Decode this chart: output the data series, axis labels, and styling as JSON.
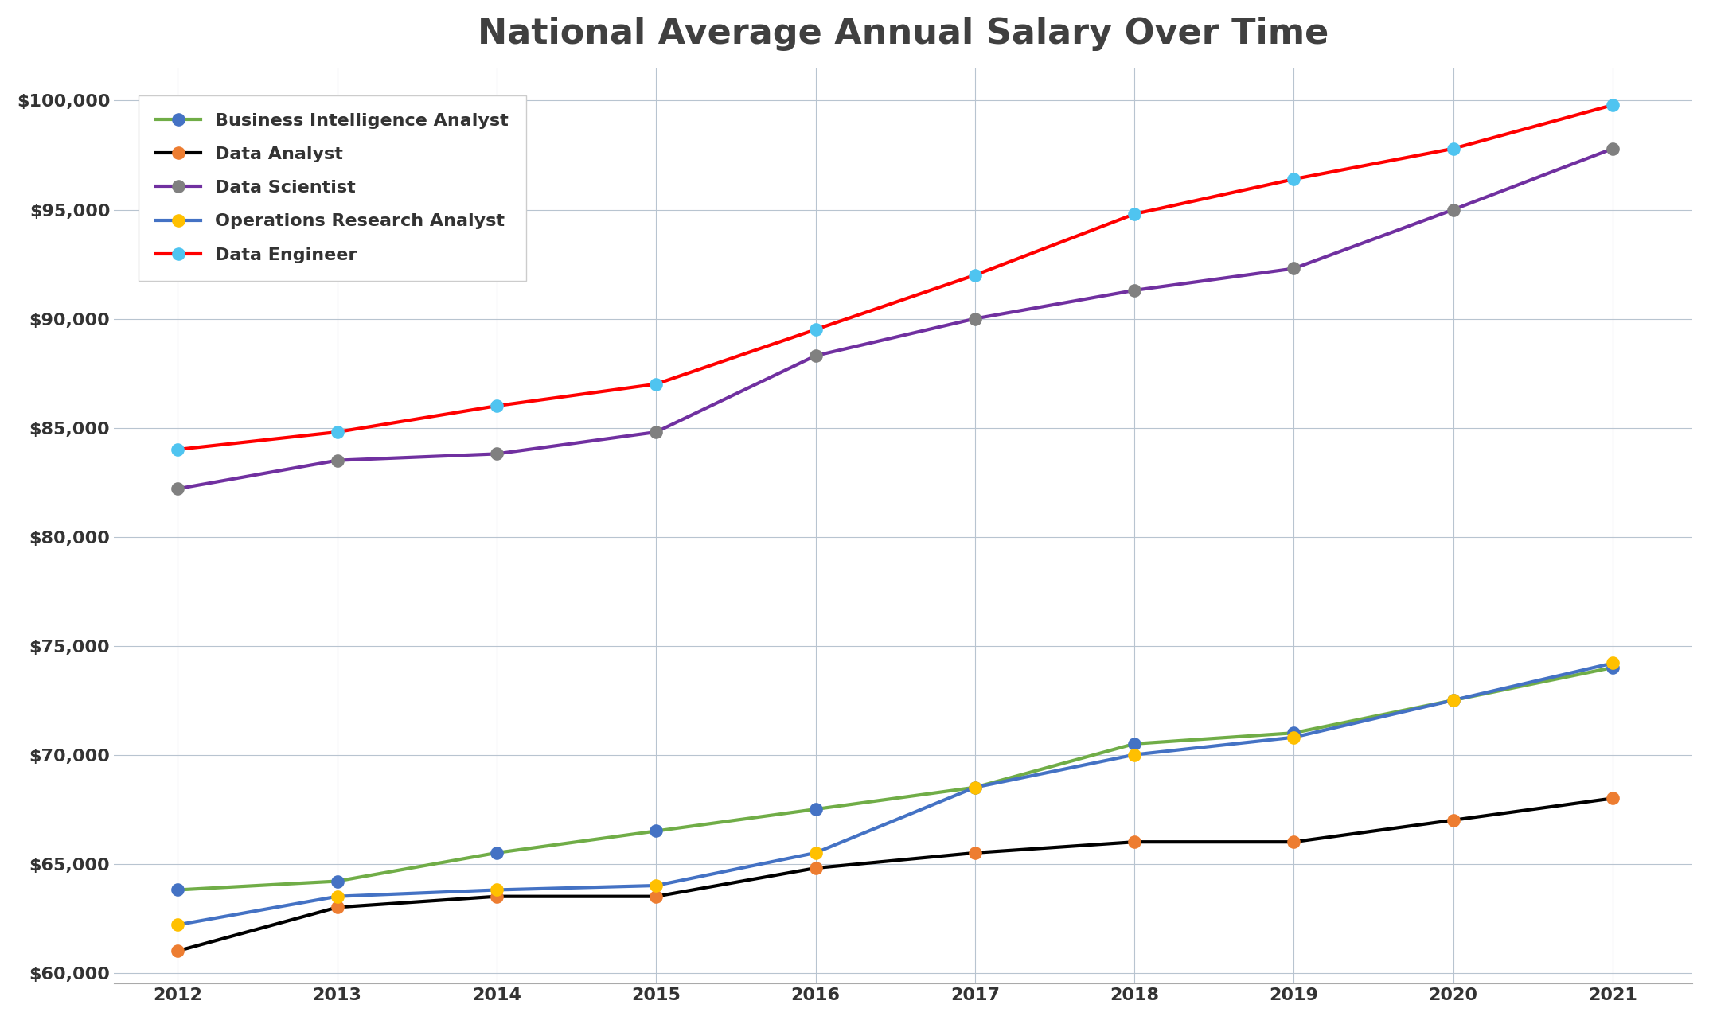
{
  "title": "National Average Annual Salary Over Time",
  "years": [
    2012,
    2013,
    2014,
    2015,
    2016,
    2017,
    2018,
    2019,
    2020,
    2021
  ],
  "series": [
    {
      "label": "Business Intelligence Analyst",
      "line_color": "#70AD47",
      "marker_facecolor": "#4472C4",
      "marker_edgecolor": "#4472C4",
      "values": [
        63800,
        64200,
        65500,
        66500,
        67500,
        68500,
        70500,
        71000,
        72500,
        74000
      ]
    },
    {
      "label": "Data Analyst",
      "line_color": "#000000",
      "marker_facecolor": "#ED7D31",
      "marker_edgecolor": "#ED7D31",
      "values": [
        61000,
        63000,
        63500,
        63500,
        64800,
        65500,
        66000,
        66000,
        67000,
        68000
      ]
    },
    {
      "label": "Data Scientist",
      "line_color": "#7030A0",
      "marker_facecolor": "#808080",
      "marker_edgecolor": "#808080",
      "values": [
        82200,
        83500,
        83800,
        84800,
        88300,
        90000,
        91300,
        92300,
        95000,
        97800
      ]
    },
    {
      "label": "Operations Research Analyst",
      "line_color": "#4472C4",
      "marker_facecolor": "#FFC000",
      "marker_edgecolor": "#FFC000",
      "values": [
        62200,
        63500,
        63800,
        64000,
        65500,
        68500,
        70000,
        70800,
        72500,
        74200
      ]
    },
    {
      "label": "Data Engineer",
      "line_color": "#FF0000",
      "marker_facecolor": "#4FC4F0",
      "marker_edgecolor": "#4FC4F0",
      "values": [
        84000,
        84800,
        86000,
        87000,
        89500,
        92000,
        94800,
        96400,
        97800,
        99800
      ]
    }
  ],
  "ylim": [
    59500,
    101500
  ],
  "yticks": [
    60000,
    65000,
    70000,
    75000,
    80000,
    85000,
    90000,
    95000,
    100000
  ],
  "xlim_left": 2011.6,
  "xlim_right": 2021.5,
  "background_color": "#FFFFFF",
  "grid_color": "#B8C4D0",
  "title_fontsize": 32,
  "legend_fontsize": 16,
  "tick_fontsize": 16,
  "linewidth": 3.0,
  "markersize": 12
}
